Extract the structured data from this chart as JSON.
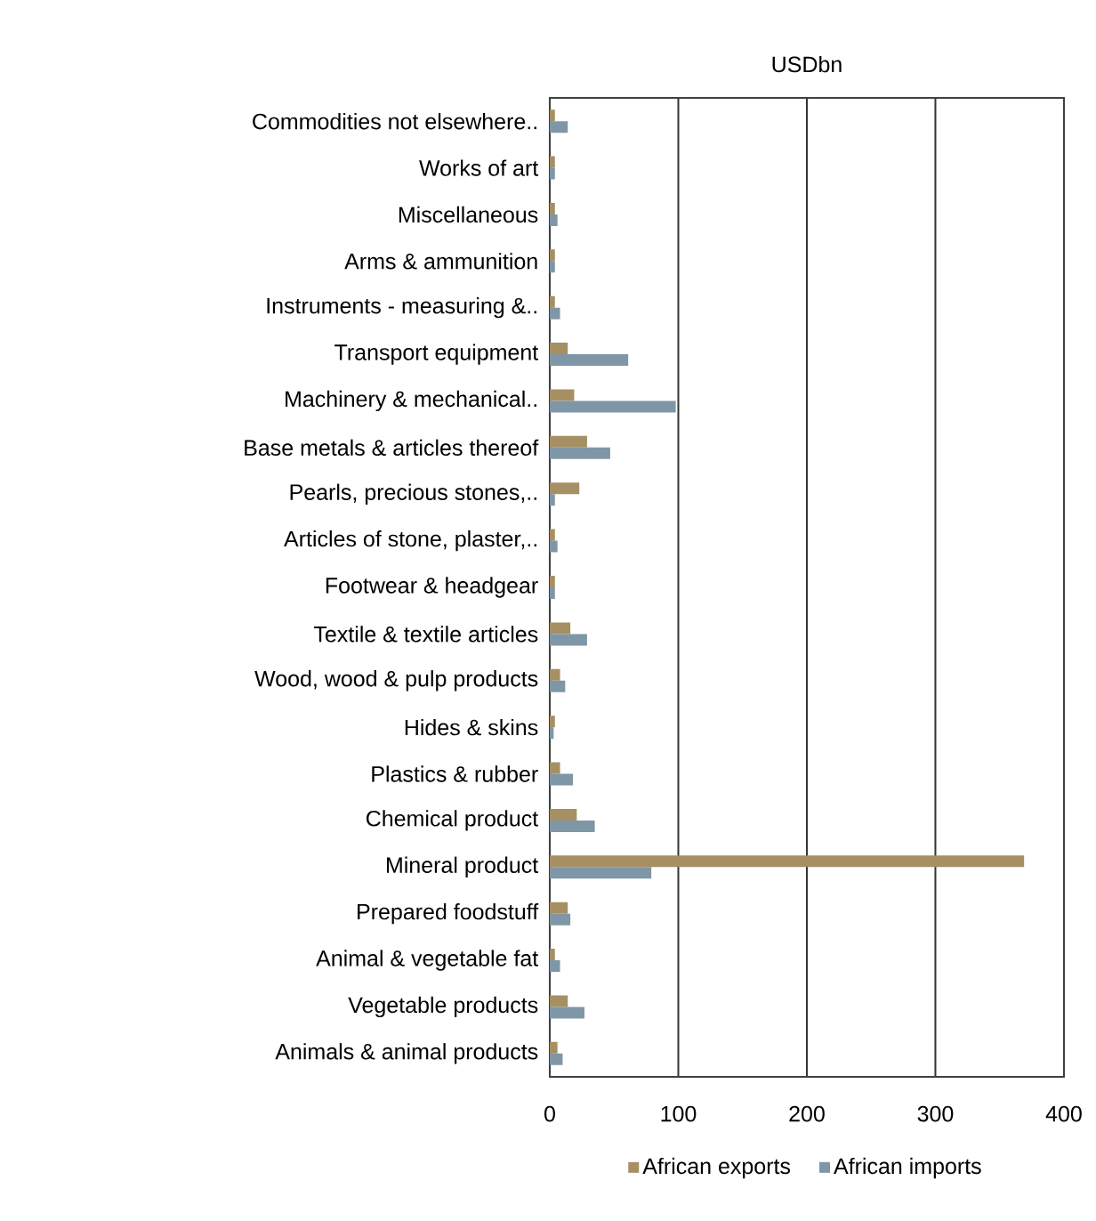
{
  "chart_data": {
    "type": "bar",
    "orientation": "horizontal",
    "title": "USDbn",
    "categories": [
      "Commodities not elsewhere..",
      "Works of art",
      "Miscellaneous",
      "Arms & ammunition",
      "Instruments - measuring &..",
      "Transport equipment",
      "Machinery & mechanical..",
      "Base metals & articles thereof",
      "Pearls, precious stones,..",
      "Articles of stone, plaster,..",
      "Footwear & headgear",
      "Textile & textile articles",
      "Wood, wood & pulp products",
      "Hides & skins",
      "Plastics & rubber",
      "Chemical product",
      "Mineral product",
      "Prepared foodstuff",
      "Animal & vegetable fat",
      "Vegetable products",
      "Animals & animal products"
    ],
    "series": [
      {
        "name": "African exports",
        "color": "#a68f63",
        "values": [
          4,
          4,
          4,
          4,
          4,
          14,
          19,
          29,
          23,
          4,
          4,
          16,
          8,
          4,
          8,
          21,
          369,
          14,
          4,
          14,
          6
        ]
      },
      {
        "name": "African imports",
        "color": "#7f96a6",
        "values": [
          14,
          4,
          6,
          4,
          8,
          61,
          98,
          47,
          4,
          6,
          4,
          29,
          12,
          3,
          18,
          35,
          79,
          16,
          8,
          27,
          10
        ]
      }
    ],
    "xlim": [
      0,
      400
    ],
    "xticks": [
      0,
      100,
      200,
      300,
      400
    ],
    "grid": "x",
    "legend": "bottom"
  }
}
